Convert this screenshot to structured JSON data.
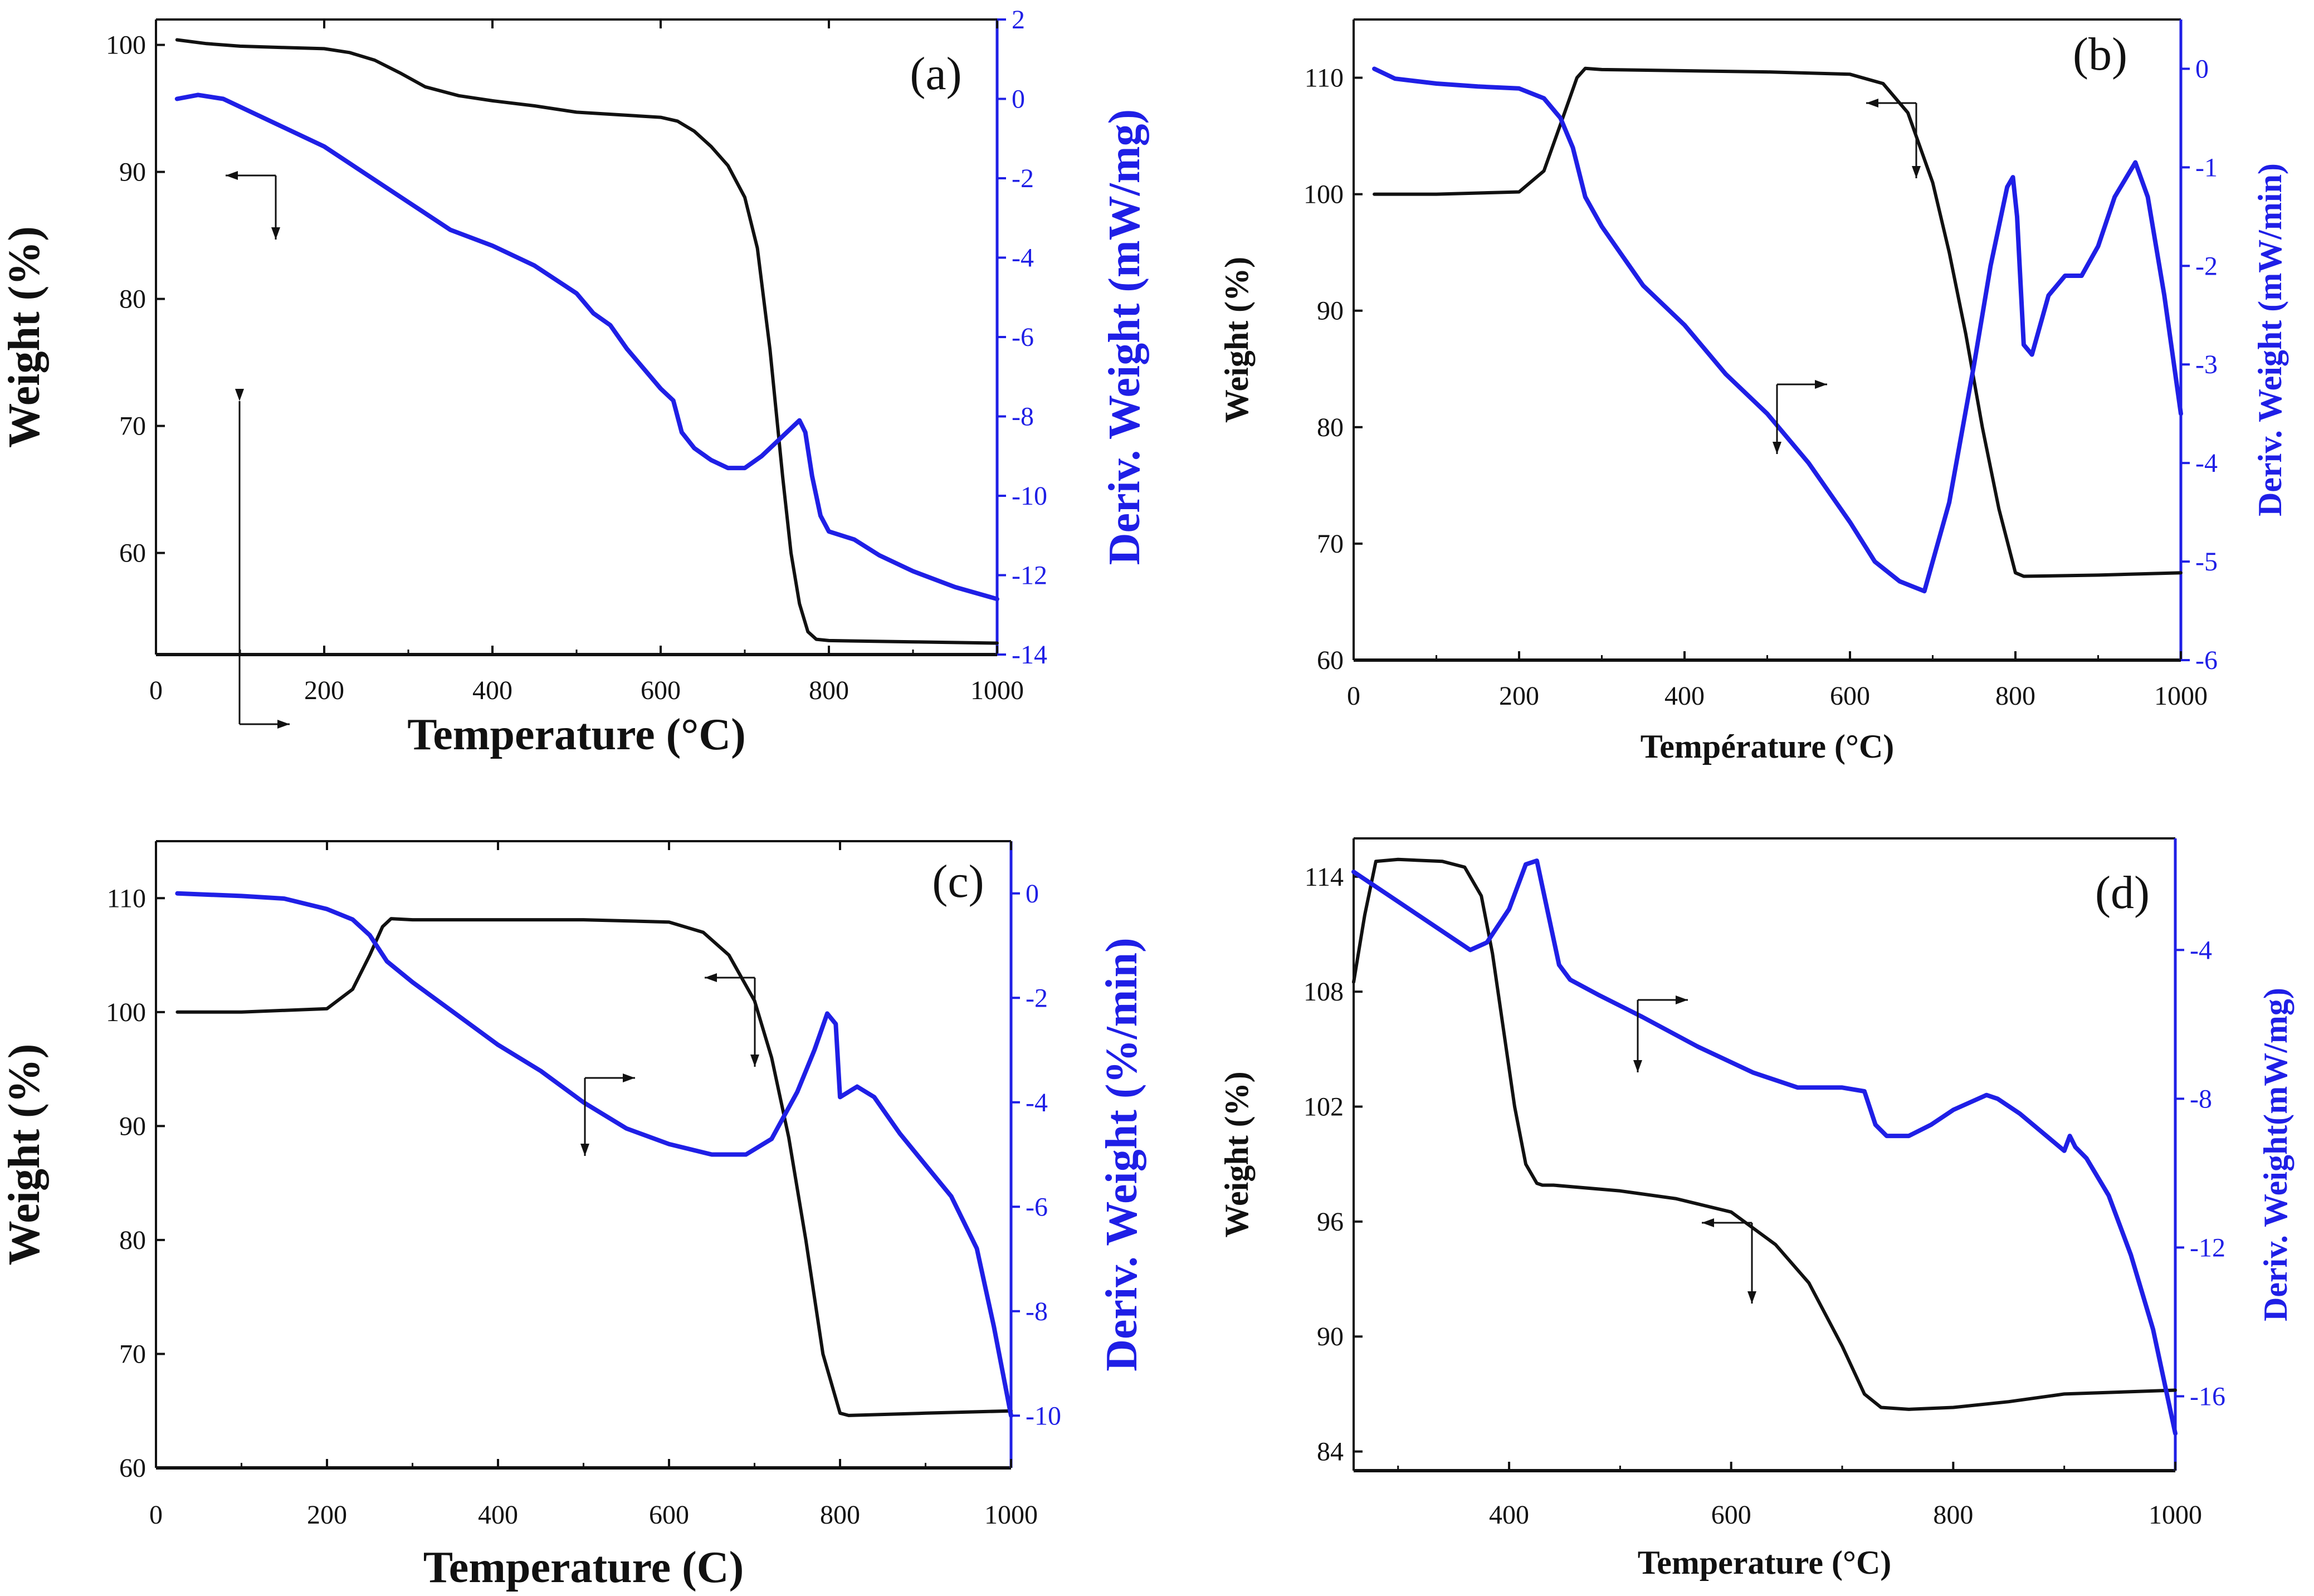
{
  "figure": {
    "colors": {
      "primary": "#111111",
      "secondary": "#1f1fe6",
      "accent": "#d43a3a"
    }
  },
  "chart_data": [
    {
      "type": "line",
      "panel_label": "(a)",
      "title": "",
      "xlabel": "Temperature (°C)",
      "ylabel": "Weight (%)",
      "y2label": "Deriv. Weight (mW/mg)",
      "xlim": [
        0,
        1000
      ],
      "ylim": [
        52,
        102
      ],
      "y2lim": [
        -14,
        2
      ],
      "xticks": [
        0,
        200,
        400,
        600,
        800,
        1000
      ],
      "yticks": [
        60,
        70,
        80,
        90,
        100
      ],
      "y2ticks": [
        -14,
        -12,
        -10,
        -8,
        -6,
        -4,
        -2,
        0,
        2
      ],
      "series": [
        {
          "name": "Weight",
          "axis": "left",
          "x": [
            25,
            60,
            100,
            150,
            200,
            230,
            260,
            290,
            320,
            360,
            400,
            450,
            500,
            550,
            600,
            620,
            640,
            660,
            680,
            700,
            715,
            730,
            745,
            755,
            765,
            775,
            785,
            800,
            900,
            1000
          ],
          "y": [
            100.4,
            100.1,
            99.9,
            99.8,
            99.7,
            99.4,
            98.8,
            97.8,
            96.7,
            96.0,
            95.6,
            95.2,
            94.7,
            94.5,
            94.3,
            94.0,
            93.2,
            92.0,
            90.5,
            88.0,
            84.0,
            76.0,
            66.0,
            60.0,
            56.0,
            53.8,
            53.2,
            53.1,
            53.0,
            52.9
          ]
        },
        {
          "name": "Deriv. Weight",
          "axis": "right",
          "x": [
            25,
            50,
            80,
            120,
            160,
            200,
            250,
            300,
            350,
            400,
            450,
            500,
            520,
            540,
            560,
            580,
            600,
            615,
            625,
            640,
            660,
            680,
            700,
            720,
            740,
            755,
            765,
            772,
            780,
            790,
            800,
            830,
            860,
            900,
            950,
            1000
          ],
          "y": [
            0.0,
            0.1,
            0.0,
            -0.4,
            -0.8,
            -1.2,
            -1.9,
            -2.6,
            -3.3,
            -3.7,
            -4.2,
            -4.9,
            -5.4,
            -5.7,
            -6.3,
            -6.8,
            -7.3,
            -7.6,
            -8.4,
            -8.8,
            -9.1,
            -9.3,
            -9.3,
            -9.0,
            -8.6,
            -8.3,
            -8.1,
            -8.4,
            -9.5,
            -10.5,
            -10.9,
            -11.1,
            -11.5,
            -11.9,
            -12.3,
            -12.6
          ]
        }
      ],
      "annotations": [
        "arrow-to-left-axis",
        "arrow-to-right-axis"
      ]
    },
    {
      "type": "line",
      "panel_label": "(b)",
      "title": "",
      "xlabel": "Température (°C)",
      "ylabel": "Weight (%)",
      "y2label": "Deriv. Weight (mW/min)",
      "xlim": [
        0,
        1000
      ],
      "ylim": [
        60,
        115
      ],
      "y2lim": [
        -6,
        0.5
      ],
      "xticks": [
        0,
        200,
        400,
        600,
        800,
        1000
      ],
      "yticks": [
        60,
        70,
        80,
        90,
        100,
        110
      ],
      "y2ticks": [
        -6,
        -5,
        -4,
        -3,
        -2,
        -1,
        0
      ],
      "series": [
        {
          "name": "Weight",
          "axis": "left",
          "x": [
            25,
            100,
            200,
            230,
            250,
            270,
            280,
            300,
            400,
            500,
            600,
            640,
            670,
            700,
            720,
            740,
            760,
            780,
            800,
            810,
            900,
            1000
          ],
          "y": [
            100.0,
            100.0,
            100.2,
            102.0,
            106.0,
            110.0,
            110.8,
            110.7,
            110.6,
            110.5,
            110.3,
            109.5,
            107.0,
            101.0,
            95.0,
            88.0,
            80.0,
            73.0,
            67.5,
            67.2,
            67.3,
            67.5
          ]
        },
        {
          "name": "Deriv. Weight",
          "axis": "right",
          "x": [
            25,
            50,
            100,
            150,
            200,
            230,
            250,
            265,
            280,
            300,
            350,
            400,
            450,
            500,
            550,
            600,
            630,
            660,
            690,
            720,
            750,
            770,
            790,
            797,
            802,
            810,
            820,
            840,
            860,
            880,
            900,
            920,
            945,
            960,
            980,
            1000
          ],
          "y": [
            0.0,
            -0.1,
            -0.15,
            -0.18,
            -0.2,
            -0.3,
            -0.5,
            -0.8,
            -1.3,
            -1.6,
            -2.2,
            -2.6,
            -3.1,
            -3.5,
            -4.0,
            -4.6,
            -5.0,
            -5.2,
            -5.3,
            -4.4,
            -3.0,
            -2.0,
            -1.2,
            -1.1,
            -1.5,
            -2.8,
            -2.9,
            -2.3,
            -2.1,
            -2.1,
            -1.8,
            -1.3,
            -0.95,
            -1.3,
            -2.3,
            -3.5
          ]
        }
      ],
      "annotations": [
        "arrow-to-left-axis",
        "arrow-to-right-axis"
      ]
    },
    {
      "type": "line",
      "panel_label": "(c)",
      "title": "",
      "xlabel": "Temperature (C)",
      "ylabel": "Weight (%)",
      "y2label": "Deriv. Weight (%/min)",
      "xlim": [
        0,
        1000
      ],
      "ylim": [
        60,
        115
      ],
      "y2lim": [
        -11,
        1
      ],
      "xticks": [
        0,
        200,
        400,
        600,
        800,
        1000
      ],
      "yticks": [
        60,
        70,
        80,
        90,
        100,
        110
      ],
      "y2ticks": [
        -10,
        -8,
        -6,
        -4,
        -2,
        0
      ],
      "series": [
        {
          "name": "Weight",
          "axis": "left",
          "x": [
            25,
            100,
            200,
            230,
            250,
            265,
            275,
            300,
            400,
            500,
            600,
            640,
            670,
            700,
            720,
            740,
            760,
            780,
            800,
            810,
            900,
            1000
          ],
          "y": [
            100.0,
            100.0,
            100.3,
            102.0,
            105.0,
            107.5,
            108.2,
            108.1,
            108.1,
            108.1,
            107.9,
            107.0,
            105.0,
            101.0,
            96.0,
            89.0,
            80.0,
            70.0,
            64.8,
            64.6,
            64.8,
            65.0
          ]
        },
        {
          "name": "Deriv. Weight",
          "axis": "right",
          "x": [
            25,
            100,
            150,
            200,
            230,
            250,
            270,
            300,
            350,
            400,
            450,
            500,
            550,
            600,
            650,
            690,
            720,
            750,
            770,
            785,
            795,
            800,
            810,
            820,
            840,
            870,
            900,
            930,
            960,
            980,
            1000
          ],
          "y": [
            0.0,
            -0.05,
            -0.1,
            -0.3,
            -0.5,
            -0.8,
            -1.3,
            -1.7,
            -2.3,
            -2.9,
            -3.4,
            -4.0,
            -4.5,
            -4.8,
            -5.0,
            -5.0,
            -4.7,
            -3.8,
            -3.0,
            -2.3,
            -2.5,
            -3.9,
            -3.8,
            -3.7,
            -3.9,
            -4.6,
            -5.2,
            -5.8,
            -6.8,
            -8.3,
            -10.0
          ]
        }
      ],
      "annotations": [
        "arrow-to-left-axis",
        "arrow-to-right-axis"
      ]
    },
    {
      "type": "line",
      "panel_label": "(d)",
      "title": "",
      "xlabel": "Temperature (°C)",
      "ylabel": "Weight (%)",
      "y2label": "Deriv. Weight(mW/mg)",
      "xlim": [
        260,
        1000
      ],
      "ylim": [
        83,
        116
      ],
      "y2lim": [
        -18,
        -1
      ],
      "xticks": [
        400,
        600,
        800,
        1000
      ],
      "yticks": [
        84,
        90,
        96,
        102,
        108,
        114
      ],
      "y2ticks": [
        -16,
        -12,
        -8,
        -4
      ],
      "series": [
        {
          "name": "Weight",
          "axis": "left",
          "x": [
            260,
            270,
            280,
            300,
            340,
            360,
            375,
            385,
            395,
            405,
            415,
            425,
            430,
            440,
            500,
            550,
            600,
            640,
            670,
            700,
            720,
            735,
            760,
            800,
            850,
            900,
            1000
          ],
          "y": [
            108.5,
            112.0,
            114.8,
            114.9,
            114.8,
            114.5,
            113.0,
            110.0,
            106.0,
            102.0,
            99.0,
            98.0,
            97.9,
            97.9,
            97.6,
            97.2,
            96.5,
            94.8,
            92.8,
            89.5,
            87.0,
            86.3,
            86.2,
            86.3,
            86.6,
            87.0,
            87.2
          ]
        },
        {
          "name": "Deriv. Weight",
          "axis": "right",
          "x": [
            260,
            290,
            320,
            350,
            365,
            380,
            400,
            415,
            425,
            435,
            445,
            455,
            480,
            520,
            570,
            620,
            660,
            700,
            720,
            730,
            740,
            760,
            780,
            800,
            830,
            840,
            860,
            880,
            900,
            905,
            910,
            920,
            940,
            960,
            980,
            1000
          ],
          "y": [
            -1.9,
            -2.5,
            -3.1,
            -3.7,
            -4.0,
            -3.8,
            -2.9,
            -1.7,
            -1.6,
            -3.0,
            -4.4,
            -4.8,
            -5.2,
            -5.8,
            -6.6,
            -7.3,
            -7.7,
            -7.7,
            -7.8,
            -8.7,
            -9.0,
            -9.0,
            -8.7,
            -8.3,
            -7.9,
            -8.0,
            -8.4,
            -8.9,
            -9.4,
            -9.0,
            -9.3,
            -9.6,
            -10.6,
            -12.2,
            -14.2,
            -17.0
          ]
        }
      ],
      "annotations": [
        "arrow-to-left-axis",
        "arrow-to-right-axis"
      ]
    }
  ]
}
